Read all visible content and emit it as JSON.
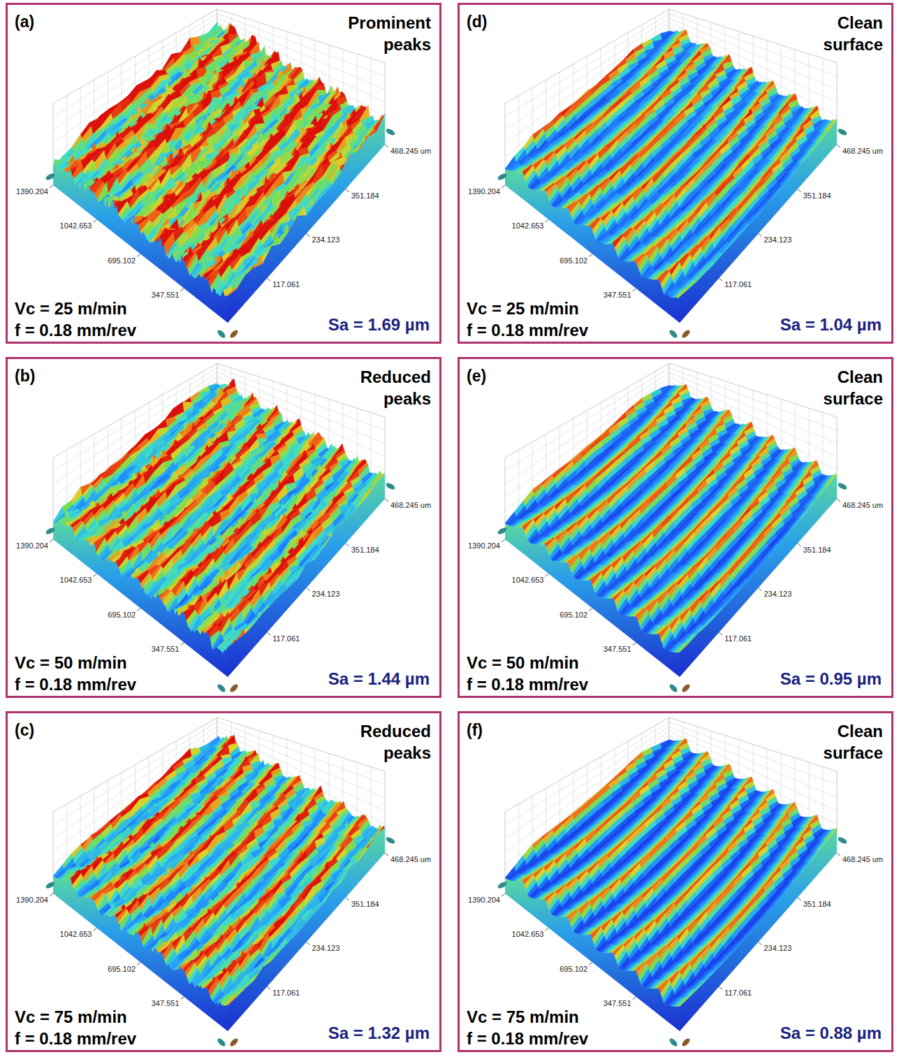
{
  "chart_data": [
    {
      "type": "surface",
      "title": "(a)",
      "subtitle": "Prominent peaks",
      "annotations": [
        "Vc = 25 m/min",
        "f = 0.18 mm/rev"
      ],
      "values": [
        1.69
      ],
      "value_labels": [
        "Sa = 1.69 µm"
      ],
      "data_labels": true,
      "xlim": [
        0,
        1390.204
      ],
      "xticks": [
        347.551,
        695.102,
        1042.653,
        1390.204
      ],
      "ylim": [
        0,
        468.245
      ],
      "yticks": [
        117.061,
        234.123,
        351.184,
        {
          "value": 468.245,
          "label": "468.245 um"
        }
      ]
    },
    {
      "type": "surface",
      "title": "(b)",
      "subtitle": "Reduced peaks",
      "annotations": [
        "Vc = 50 m/min",
        "f = 0.18 mm/rev"
      ],
      "values": [
        1.44
      ],
      "value_labels": [
        "Sa = 1.44 µm"
      ],
      "data_labels": true,
      "xlim": [
        0,
        1390.204
      ],
      "xticks": [
        347.551,
        695.102,
        1042.653,
        1390.204
      ],
      "ylim": [
        0,
        468.245
      ],
      "yticks": [
        117.061,
        234.123,
        351.184,
        {
          "value": 468.245,
          "label": "468.245 um"
        }
      ]
    },
    {
      "type": "surface",
      "title": "(c)",
      "subtitle": "Reduced peaks",
      "annotations": [
        "Vc = 75 m/min",
        "f = 0.18 mm/rev"
      ],
      "values": [
        1.32
      ],
      "value_labels": [
        "Sa = 1.32 µm"
      ],
      "data_labels": true,
      "xlim": [
        0,
        1390.204
      ],
      "xticks": [
        347.551,
        695.102,
        1042.653,
        1390.204
      ],
      "ylim": [
        0,
        468.245
      ],
      "yticks": [
        117.061,
        234.123,
        351.184,
        {
          "value": 468.245,
          "label": "468.245 um"
        }
      ]
    },
    {
      "type": "surface",
      "title": "(d)",
      "subtitle": "Clean surface",
      "annotations": [
        "Vc = 25 m/min",
        "f = 0.18 mm/rev"
      ],
      "values": [
        1.04
      ],
      "value_labels": [
        "Sa = 1.04 µm"
      ],
      "data_labels": true,
      "xlim": [
        0,
        1390.204
      ],
      "xticks": [
        347.551,
        695.102,
        1042.653,
        1390.204
      ],
      "ylim": [
        0,
        468.245
      ],
      "yticks": [
        117.061,
        234.123,
        351.184,
        {
          "value": 468.245,
          "label": "468.245 um"
        }
      ]
    },
    {
      "type": "surface",
      "title": "(e)",
      "subtitle": "Clean surface",
      "annotations": [
        "Vc = 50 m/min",
        "f = 0.18 mm/rev"
      ],
      "values": [
        0.95
      ],
      "value_labels": [
        "Sa = 0.95 µm"
      ],
      "data_labels": true,
      "xlim": [
        0,
        1390.204
      ],
      "xticks": [
        347.551,
        695.102,
        1042.653,
        1390.204
      ],
      "ylim": [
        0,
        468.245
      ],
      "yticks": [
        117.061,
        234.123,
        351.184,
        {
          "value": 468.245,
          "label": "468.245 um"
        }
      ]
    },
    {
      "type": "surface",
      "title": "(f)",
      "subtitle": "Clean surface",
      "annotations": [
        "Vc = 75 m/min",
        "f = 0.18 mm/rev"
      ],
      "values": [
        0.88
      ],
      "value_labels": [
        "Sa = 0.88 µm"
      ],
      "data_labels": true,
      "xlim": [
        0,
        1390.204
      ],
      "xticks": [
        347.551,
        695.102,
        1042.653,
        1390.204
      ],
      "ylim": [
        0,
        468.245
      ],
      "yticks": [
        117.061,
        234.123,
        351.184,
        {
          "value": 468.245,
          "label": "468.245 um"
        }
      ]
    }
  ]
}
